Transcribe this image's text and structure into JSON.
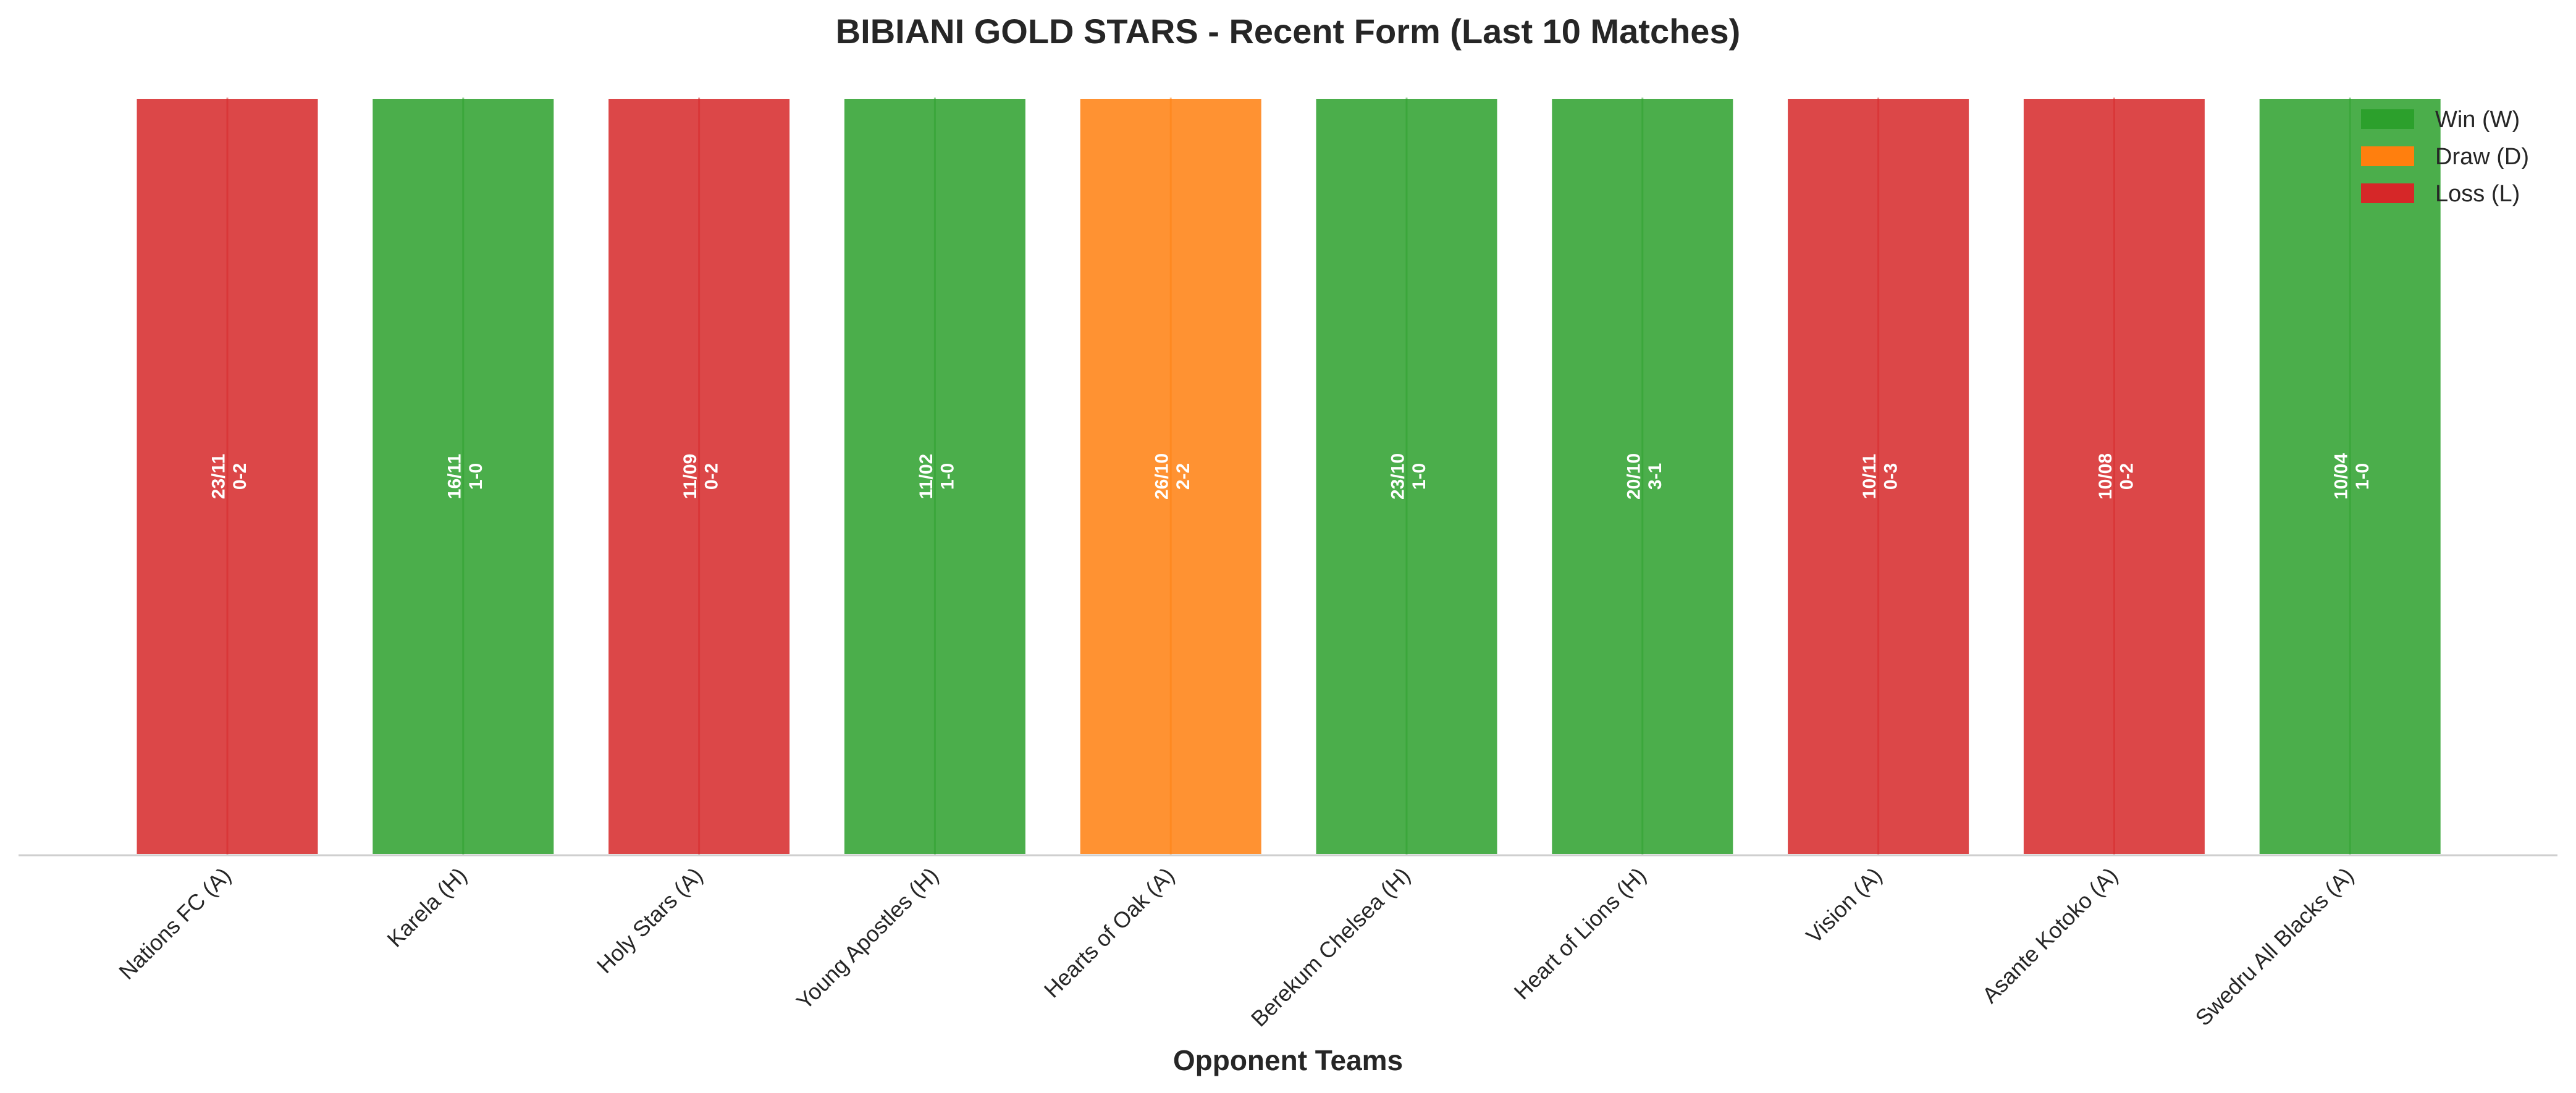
{
  "chart_data": {
    "type": "bar",
    "title": "BIBIANI GOLD STARS - Recent Form (Last 10 Matches)",
    "xlabel": "Opponent Teams",
    "ylabel": "",
    "grid": false,
    "legend_position": "top-right",
    "legend": [
      {
        "label": "Win (W)",
        "color": "#2ca02c"
      },
      {
        "label": "Draw (D)",
        "color": "#ff7f0e"
      },
      {
        "label": "Loss (L)",
        "color": "#d62728"
      }
    ],
    "categories": [
      "Nations FC (A)",
      "Karela (H)",
      "Holy Stars (A)",
      "Young Apostles (H)",
      "Hearts of Oak (A)",
      "Berekum Chelsea (H)",
      "Heart of Lions (H)",
      "Vision (A)",
      "Asante Kotoko (A)",
      "Swedru All Blacks (A)"
    ],
    "values": [
      1,
      1,
      1,
      1,
      1,
      1,
      1,
      1,
      1,
      1
    ],
    "results": [
      "L",
      "W",
      "L",
      "W",
      "D",
      "W",
      "W",
      "L",
      "L",
      "W"
    ],
    "dates": [
      "23/11",
      "16/11",
      "11/09",
      "11/02",
      "26/10",
      "23/10",
      "20/10",
      "10/11",
      "10/08",
      "10/04"
    ],
    "scores": [
      "0-2",
      "1-0",
      "0-2",
      "1-0",
      "2-2",
      "1-0",
      "3-1",
      "0-3",
      "0-2",
      "1-0"
    ],
    "colors": {
      "W": "#2ca02c",
      "D": "#ff7f0e",
      "L": "#d62728"
    }
  }
}
